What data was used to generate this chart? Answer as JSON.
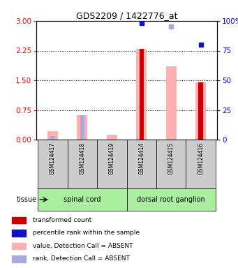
{
  "title": "GDS2209 / 1422776_at",
  "samples": [
    "GSM124417",
    "GSM124418",
    "GSM124419",
    "GSM124414",
    "GSM124415",
    "GSM124416"
  ],
  "group_info": [
    {
      "start": 0,
      "end": 2,
      "label": "spinal cord"
    },
    {
      "start": 3,
      "end": 5,
      "label": "dorsal root ganglion"
    }
  ],
  "value_absent": [
    0.22,
    0.62,
    0.12,
    2.3,
    1.85,
    1.45
  ],
  "rank_absent_left": [
    0.08,
    0.62,
    null,
    null,
    null,
    null
  ],
  "transformed_count": [
    null,
    null,
    null,
    2.3,
    null,
    1.45
  ],
  "percentile_rank_blue": [
    null,
    null,
    null,
    98.0,
    null,
    80.0
  ],
  "percentile_rank_lavender": [
    null,
    null,
    null,
    null,
    95.5,
    null
  ],
  "ylim_left": [
    0,
    3
  ],
  "ylim_right": [
    0,
    100
  ],
  "yticks_left": [
    0,
    0.75,
    1.5,
    2.25,
    3
  ],
  "yticks_right": [
    0,
    25,
    50,
    75,
    100
  ],
  "color_red": "#cc0000",
  "color_blue": "#1111cc",
  "color_pink": "#ffb0b0",
  "color_lavender": "#aaaadd",
  "color_tissue_bg": "#aaeea0",
  "color_sample_bg": "#cccccc",
  "color_plot_bg": "#ffffff",
  "legend_items": [
    {
      "color": "#cc0000",
      "label": "transformed count"
    },
    {
      "color": "#1111cc",
      "label": "percentile rank within the sample"
    },
    {
      "color": "#ffb0b0",
      "label": "value, Detection Call = ABSENT"
    },
    {
      "color": "#aaaadd",
      "label": "rank, Detection Call = ABSENT"
    }
  ]
}
